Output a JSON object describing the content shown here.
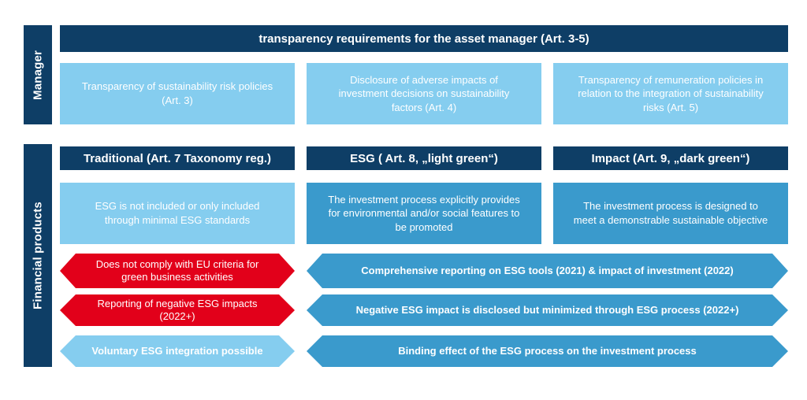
{
  "colors": {
    "navy": "#0e3e66",
    "light_blue": "#85cdef",
    "medium_blue": "#3a9acc",
    "red": "#e2001a",
    "text": "#ffffff",
    "background": "#ffffff"
  },
  "manager_section": {
    "sidebar_label": "Manager",
    "header": "transparency requirements for the asset manager (Art. 3-5)",
    "boxes": [
      "Transparency of sustainability risk policies (Art. 3)",
      "Disclosure of adverse impacts of investment decisions on sustainability factors (Art. 4)",
      "Transparency of remuneration policies in relation to the integration of sustainability risks (Art. 5)"
    ]
  },
  "products_section": {
    "sidebar_label": "Financial products",
    "columns": [
      {
        "header": "Traditional (Art. 7  Taxonomy reg.)",
        "description": "ESG is not included or only included through minimal ESG standards"
      },
      {
        "header": "ESG ( Art. 8, „light green“)",
        "description": "The investment process explicitly provides for environmental and/or social features to be promoted"
      },
      {
        "header": "Impact (Art. 9, „dark green“)",
        "description": "The investment process is designed to meet a demonstrable sustainable objective"
      }
    ],
    "traditional_arrows": [
      {
        "label": "Does not comply with EU criteria for green business activities",
        "color": "red"
      },
      {
        "label": "Reporting of negative ESG impacts (2022+)",
        "color": "red"
      },
      {
        "label": "Voluntary ESG integration possible",
        "color": "light_blue"
      }
    ],
    "esg_impact_arrows": [
      "Comprehensive reporting on ESG tools (2021) & impact of investment (2022)",
      "Negative ESG impact is disclosed but minimized through ESG process (2022+)",
      "Binding effect of the ESG process on the investment process"
    ]
  }
}
